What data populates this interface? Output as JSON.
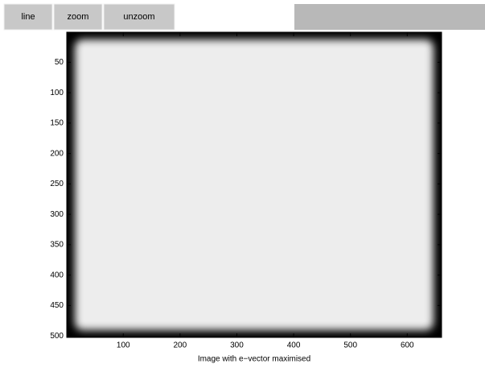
{
  "toolbar": {
    "buttons": [
      "line",
      "zoom",
      "unzoom"
    ]
  },
  "chart_data": {
    "type": "image",
    "xlabel": "Image with e−vector maximised",
    "xlim": [
      0.5,
      660.5
    ],
    "ylim": [
      0.5,
      502.5
    ],
    "yreverse": true,
    "xticks": [
      100,
      200,
      300,
      400,
      500,
      600
    ],
    "yticks": [
      50,
      100,
      150,
      200,
      250,
      300,
      350,
      400,
      450,
      500
    ]
  }
}
